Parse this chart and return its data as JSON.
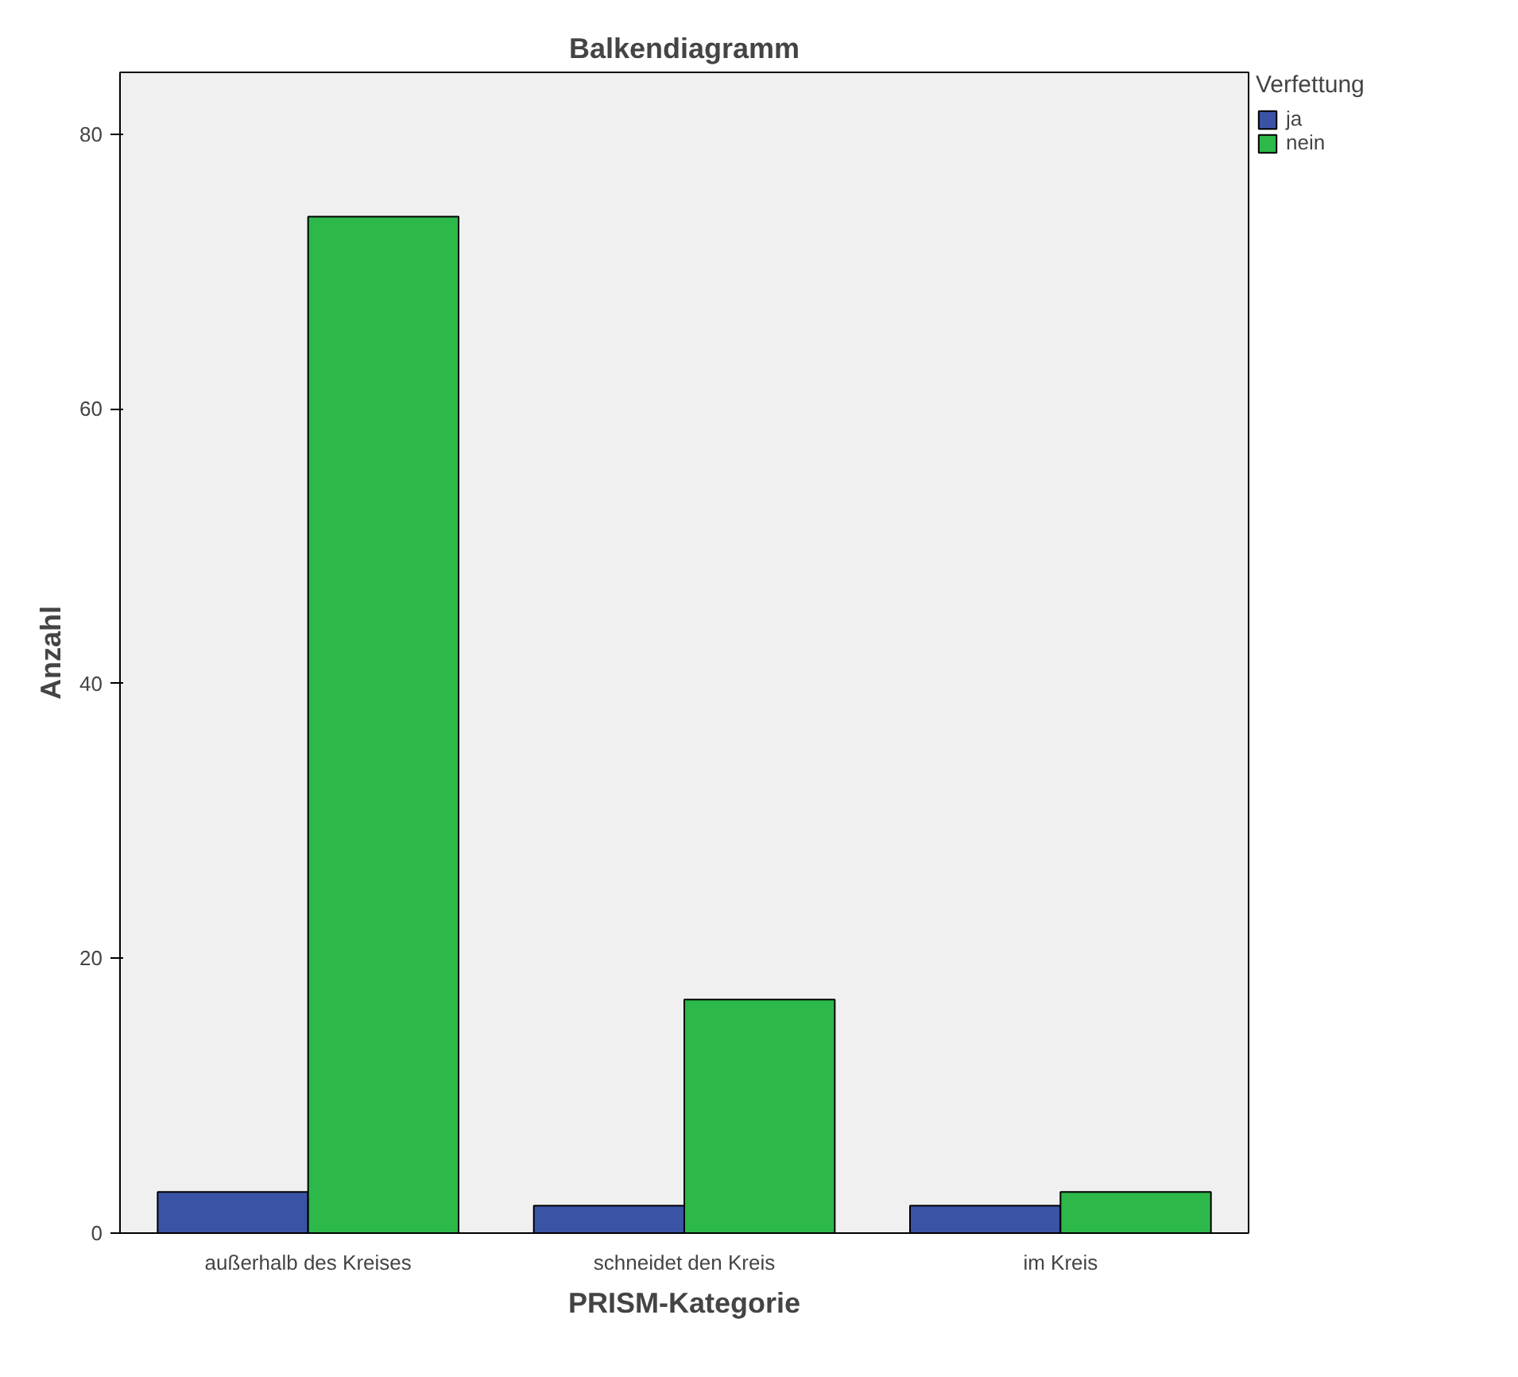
{
  "chart_data": {
    "type": "bar",
    "title": "Balkendiagramm",
    "xlabel": "PRISM-Kategorie",
    "ylabel": "Anzahl",
    "legend_title": "Verfettung",
    "categories": [
      "außerhalb des Kreises",
      "schneidet den Kreis",
      "im Kreis"
    ],
    "series": [
      {
        "name": "ja",
        "color": "#3a53a4",
        "values": [
          3,
          2,
          2
        ]
      },
      {
        "name": "nein",
        "color": "#2db84a",
        "values": [
          74,
          17,
          3
        ]
      }
    ],
    "ylim": [
      0,
      84.5
    ],
    "yticks": [
      0,
      20,
      40,
      60,
      80
    ],
    "grid": false,
    "legend": "top right"
  }
}
